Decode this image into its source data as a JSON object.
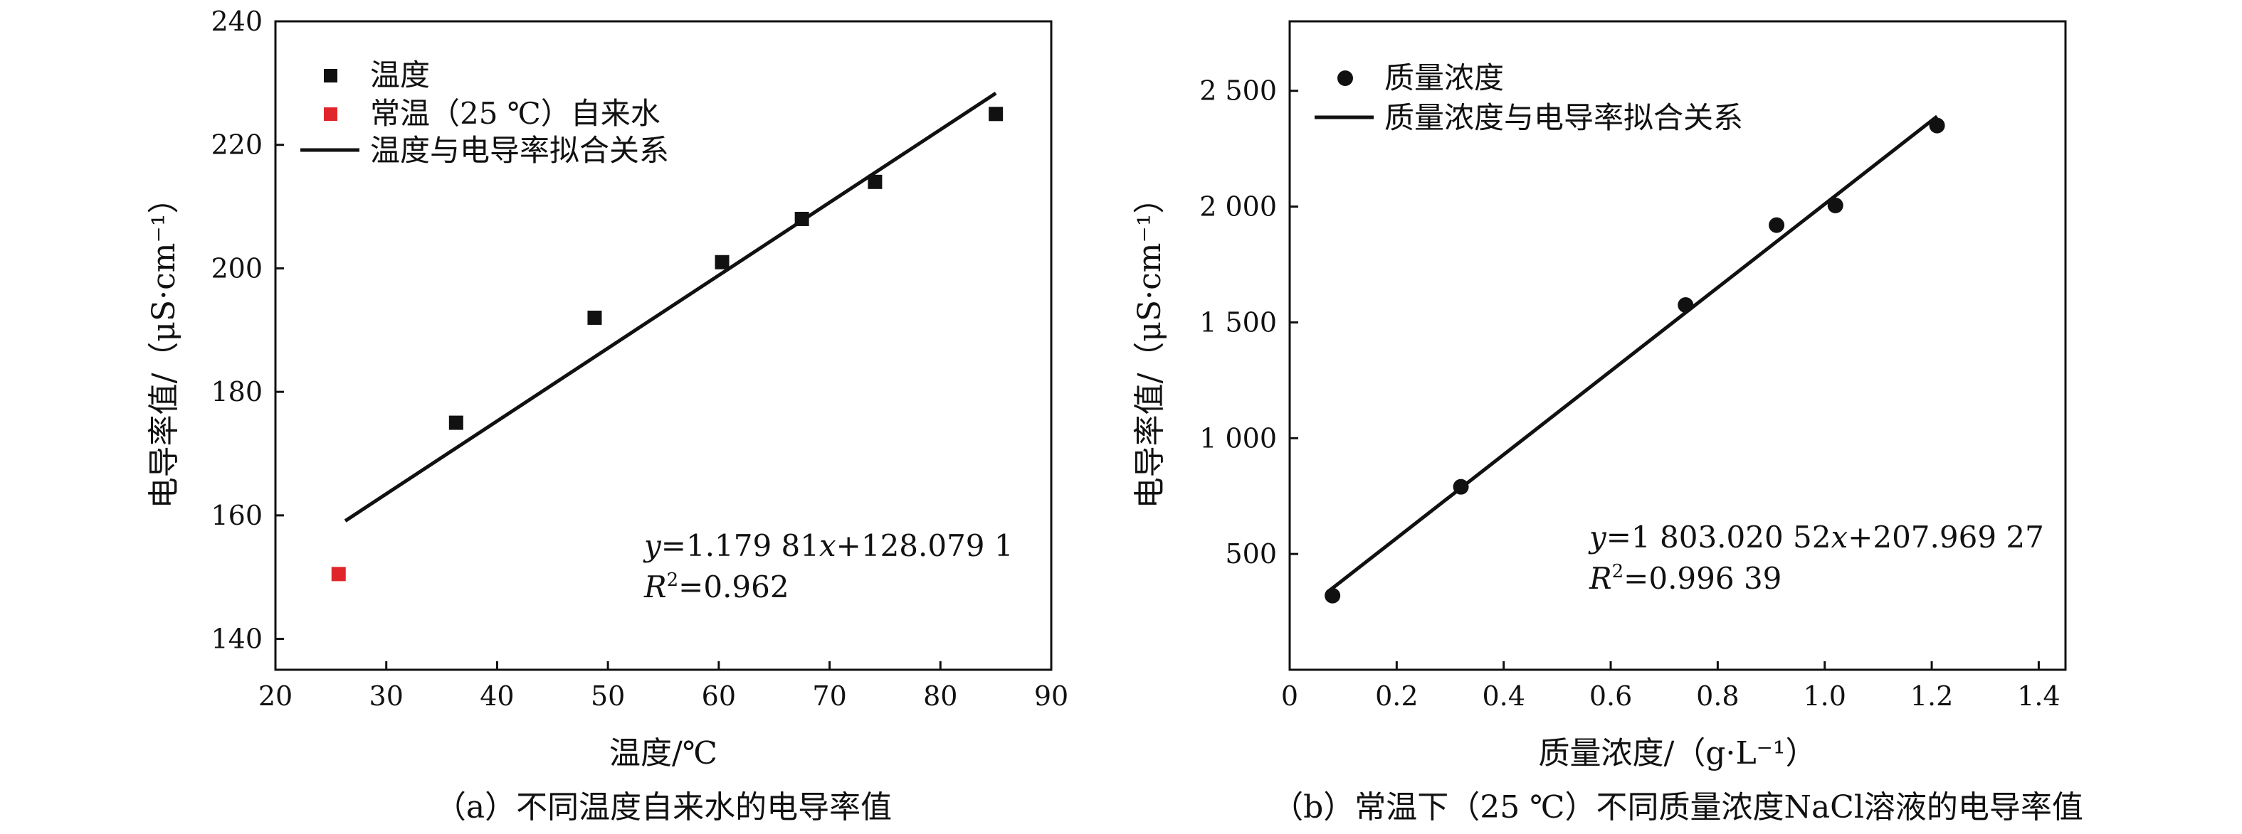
{
  "chart_data": [
    {
      "type": "scatter",
      "xlabel": "温度/℃",
      "ylabel": "电导率值/（μS·cm⁻¹）",
      "caption": "（a）不同温度自来水的电导率值",
      "xlim": [
        20,
        90
      ],
      "ylim": [
        135,
        240
      ],
      "xticks": [
        "20",
        "30",
        "40",
        "50",
        "60",
        "70",
        "80",
        "90"
      ],
      "yticks": [
        "140",
        "160",
        "180",
        "200",
        "220",
        "240"
      ],
      "series": [
        {
          "name": "温度",
          "color": "#111111",
          "marker": "square",
          "x": [
            36.3,
            48.8,
            60.3,
            67.5,
            74.1,
            85.0
          ],
          "y": [
            175,
            192,
            201,
            208,
            214,
            225
          ]
        },
        {
          "name": "常温（25 ℃）自来水",
          "color": "#e0262b",
          "marker": "square",
          "x": [
            25.7
          ],
          "y": [
            150.5
          ]
        }
      ],
      "fit": {
        "name": "温度与电导率拟合关系",
        "slope": 1.17981,
        "intercept": 128.0791,
        "x_range": [
          26.3,
          85.0
        ]
      },
      "equation": {
        "y_label": "y",
        "y_rest": "=1.179 81",
        "x_label": "x",
        "x_rest": "+128.079 1",
        "r_label": "R",
        "r_sup": "2",
        "r_rest": "=0.962"
      },
      "legend_position": "top-left",
      "grid": false
    },
    {
      "type": "scatter",
      "xlabel": "质量浓度/（g·L⁻¹）",
      "ylabel": "电导率值/（μS·cm⁻¹）",
      "caption": "（b）常温下（25 ℃）不同质量浓度NaCl溶液的电导率值",
      "xlim": [
        0,
        1.45
      ],
      "ylim": [
        0,
        2800
      ],
      "xticks": [
        0,
        0.2,
        0.4,
        0.6,
        0.8,
        1.0,
        1.2,
        1.4
      ],
      "xtick_labels": [
        "0",
        "0.2",
        "0.4",
        "0.6",
        "0.8",
        "1.0",
        "1.2",
        "1.4"
      ],
      "yticks": [
        500,
        1000,
        1500,
        2000,
        2500
      ],
      "ytick_labels": [
        "500",
        "1 000",
        "1 500",
        "2 000",
        "2 500"
      ],
      "series": [
        {
          "name": "质量浓度",
          "color": "#111111",
          "marker": "circle",
          "x": [
            0.08,
            0.32,
            0.74,
            0.91,
            1.02,
            1.21
          ],
          "y": [
            320,
            790,
            1575,
            1920,
            2005,
            2350
          ]
        }
      ],
      "fit": {
        "name": "质量浓度与电导率拟合关系",
        "slope": 1803.02052,
        "intercept": 207.96927,
        "x_range": [
          0.07,
          1.21
        ]
      },
      "equation": {
        "y_label": "y",
        "y_rest": "=1 803.020 52",
        "x_label": "x",
        "x_rest": "+207.969 27",
        "r_label": "R",
        "r_sup": "2",
        "r_rest": "=0.996 39"
      },
      "legend_position": "top-left",
      "grid": false
    }
  ]
}
